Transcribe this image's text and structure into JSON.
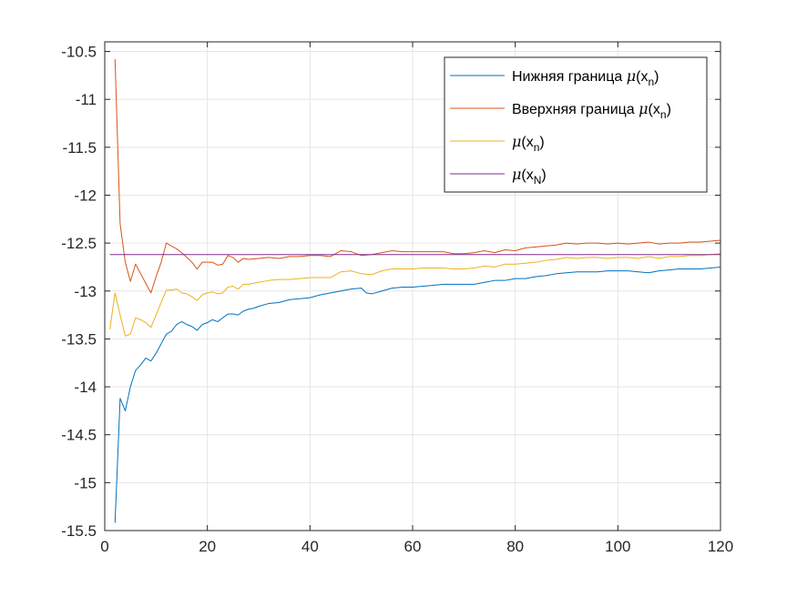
{
  "chart_data": {
    "type": "line",
    "title": "",
    "xlabel": "",
    "ylabel": "",
    "xlim": [
      0,
      120
    ],
    "ylim": [
      -15.5,
      -10.4
    ],
    "xticks": [
      0,
      20,
      40,
      60,
      80,
      100,
      120
    ],
    "xtick_labels": [
      "0",
      "20",
      "40",
      "60",
      "80",
      "100",
      "120"
    ],
    "yticks": [
      -15.5,
      -15,
      -14.5,
      -14,
      -13.5,
      -13,
      -12.5,
      -12,
      -11.5,
      -11,
      -10.5
    ],
    "ytick_labels": [
      "-15.5",
      "-15",
      "-14.5",
      "-14",
      "-13.5",
      "-13",
      "-12.5",
      "-12",
      "-11.5",
      "-11",
      "-10.5"
    ],
    "grid": true,
    "legend_position": "top-right",
    "series": [
      {
        "legend_prefix": "Нижняя граница ",
        "symbol": "μ",
        "arg_open": "(x",
        "subscript": "n",
        "arg_close": ")",
        "color": "#0072BD",
        "points": [
          [
            2,
            -15.42
          ],
          [
            3,
            -14.12
          ],
          [
            4,
            -14.25
          ],
          [
            5,
            -14.0
          ],
          [
            6,
            -13.83
          ],
          [
            7,
            -13.77
          ],
          [
            8,
            -13.7
          ],
          [
            9,
            -13.73
          ],
          [
            10,
            -13.65
          ],
          [
            11,
            -13.55
          ],
          [
            12,
            -13.45
          ],
          [
            13,
            -13.42
          ],
          [
            14,
            -13.35
          ],
          [
            15,
            -13.32
          ],
          [
            16,
            -13.35
          ],
          [
            17,
            -13.37
          ],
          [
            18,
            -13.41
          ],
          [
            19,
            -13.35
          ],
          [
            20,
            -13.33
          ],
          [
            21,
            -13.3
          ],
          [
            22,
            -13.32
          ],
          [
            23,
            -13.28
          ],
          [
            24,
            -13.24
          ],
          [
            25,
            -13.24
          ],
          [
            26,
            -13.25
          ],
          [
            27,
            -13.21
          ],
          [
            28,
            -13.19
          ],
          [
            29,
            -13.18
          ],
          [
            30,
            -13.16
          ],
          [
            32,
            -13.13
          ],
          [
            34,
            -13.12
          ],
          [
            36,
            -13.09
          ],
          [
            38,
            -13.08
          ],
          [
            40,
            -13.07
          ],
          [
            42,
            -13.04
          ],
          [
            44,
            -13.02
          ],
          [
            46,
            -13.0
          ],
          [
            48,
            -12.98
          ],
          [
            50,
            -12.97
          ],
          [
            51,
            -13.02
          ],
          [
            52,
            -13.03
          ],
          [
            54,
            -13.0
          ],
          [
            56,
            -12.97
          ],
          [
            58,
            -12.96
          ],
          [
            60,
            -12.96
          ],
          [
            62,
            -12.95
          ],
          [
            64,
            -12.94
          ],
          [
            66,
            -12.93
          ],
          [
            68,
            -12.93
          ],
          [
            70,
            -12.93
          ],
          [
            72,
            -12.93
          ],
          [
            74,
            -12.91
          ],
          [
            76,
            -12.89
          ],
          [
            78,
            -12.89
          ],
          [
            80,
            -12.87
          ],
          [
            82,
            -12.87
          ],
          [
            84,
            -12.85
          ],
          [
            86,
            -12.84
          ],
          [
            88,
            -12.82
          ],
          [
            90,
            -12.81
          ],
          [
            92,
            -12.8
          ],
          [
            94,
            -12.8
          ],
          [
            96,
            -12.8
          ],
          [
            98,
            -12.79
          ],
          [
            100,
            -12.79
          ],
          [
            102,
            -12.79
          ],
          [
            104,
            -12.8
          ],
          [
            106,
            -12.81
          ],
          [
            108,
            -12.79
          ],
          [
            110,
            -12.78
          ],
          [
            112,
            -12.77
          ],
          [
            114,
            -12.77
          ],
          [
            116,
            -12.77
          ],
          [
            118,
            -12.76
          ],
          [
            120,
            -12.75
          ]
        ]
      },
      {
        "legend_prefix": "Вверхняя граница ",
        "symbol": "μ",
        "arg_open": "(x",
        "subscript": "n",
        "arg_close": ")",
        "color": "#D95319",
        "points": [
          [
            2,
            -10.58
          ],
          [
            3,
            -12.3
          ],
          [
            4,
            -12.7
          ],
          [
            5,
            -12.9
          ],
          [
            6,
            -12.72
          ],
          [
            7,
            -12.82
          ],
          [
            8,
            -12.92
          ],
          [
            9,
            -13.02
          ],
          [
            10,
            -12.85
          ],
          [
            11,
            -12.7
          ],
          [
            12,
            -12.5
          ],
          [
            13,
            -12.53
          ],
          [
            14,
            -12.56
          ],
          [
            15,
            -12.6
          ],
          [
            16,
            -12.65
          ],
          [
            17,
            -12.7
          ],
          [
            18,
            -12.77
          ],
          [
            19,
            -12.7
          ],
          [
            20,
            -12.7
          ],
          [
            21,
            -12.7
          ],
          [
            22,
            -12.73
          ],
          [
            23,
            -12.72
          ],
          [
            24,
            -12.63
          ],
          [
            25,
            -12.65
          ],
          [
            26,
            -12.7
          ],
          [
            27,
            -12.66
          ],
          [
            28,
            -12.67
          ],
          [
            30,
            -12.66
          ],
          [
            32,
            -12.65
          ],
          [
            34,
            -12.66
          ],
          [
            36,
            -12.64
          ],
          [
            38,
            -12.64
          ],
          [
            40,
            -12.63
          ],
          [
            42,
            -12.63
          ],
          [
            44,
            -12.64
          ],
          [
            46,
            -12.58
          ],
          [
            48,
            -12.59
          ],
          [
            50,
            -12.63
          ],
          [
            52,
            -12.62
          ],
          [
            54,
            -12.6
          ],
          [
            56,
            -12.58
          ],
          [
            58,
            -12.59
          ],
          [
            60,
            -12.59
          ],
          [
            62,
            -12.59
          ],
          [
            64,
            -12.59
          ],
          [
            66,
            -12.59
          ],
          [
            68,
            -12.61
          ],
          [
            70,
            -12.61
          ],
          [
            72,
            -12.6
          ],
          [
            74,
            -12.58
          ],
          [
            76,
            -12.6
          ],
          [
            78,
            -12.57
          ],
          [
            80,
            -12.58
          ],
          [
            82,
            -12.55
          ],
          [
            84,
            -12.54
          ],
          [
            86,
            -12.53
          ],
          [
            88,
            -12.52
          ],
          [
            90,
            -12.5
          ],
          [
            92,
            -12.51
          ],
          [
            94,
            -12.5
          ],
          [
            96,
            -12.5
          ],
          [
            98,
            -12.51
          ],
          [
            100,
            -12.5
          ],
          [
            102,
            -12.51
          ],
          [
            104,
            -12.5
          ],
          [
            106,
            -12.49
          ],
          [
            108,
            -12.51
          ],
          [
            110,
            -12.5
          ],
          [
            112,
            -12.5
          ],
          [
            114,
            -12.49
          ],
          [
            116,
            -12.49
          ],
          [
            118,
            -12.48
          ],
          [
            120,
            -12.47
          ]
        ]
      },
      {
        "legend_prefix": "",
        "symbol": "μ",
        "arg_open": "(x",
        "subscript": "n",
        "arg_close": ")",
        "color": "#EDB120",
        "points": [
          [
            1,
            -13.4
          ],
          [
            2,
            -13.02
          ],
          [
            3,
            -13.25
          ],
          [
            4,
            -13.47
          ],
          [
            5,
            -13.45
          ],
          [
            6,
            -13.28
          ],
          [
            7,
            -13.3
          ],
          [
            8,
            -13.33
          ],
          [
            9,
            -13.38
          ],
          [
            10,
            -13.25
          ],
          [
            11,
            -13.12
          ],
          [
            12,
            -12.99
          ],
          [
            13,
            -12.99
          ],
          [
            14,
            -12.98
          ],
          [
            15,
            -13.02
          ],
          [
            16,
            -13.03
          ],
          [
            17,
            -13.06
          ],
          [
            18,
            -13.1
          ],
          [
            19,
            -13.04
          ],
          [
            20,
            -13.02
          ],
          [
            21,
            -13.01
          ],
          [
            22,
            -13.03
          ],
          [
            23,
            -13.02
          ],
          [
            24,
            -12.96
          ],
          [
            25,
            -12.95
          ],
          [
            26,
            -12.98
          ],
          [
            27,
            -12.93
          ],
          [
            28,
            -12.93
          ],
          [
            30,
            -12.91
          ],
          [
            32,
            -12.89
          ],
          [
            34,
            -12.88
          ],
          [
            36,
            -12.88
          ],
          [
            38,
            -12.87
          ],
          [
            40,
            -12.86
          ],
          [
            42,
            -12.86
          ],
          [
            44,
            -12.86
          ],
          [
            46,
            -12.8
          ],
          [
            48,
            -12.79
          ],
          [
            50,
            -12.82
          ],
          [
            52,
            -12.83
          ],
          [
            54,
            -12.79
          ],
          [
            56,
            -12.77
          ],
          [
            58,
            -12.77
          ],
          [
            60,
            -12.77
          ],
          [
            62,
            -12.76
          ],
          [
            64,
            -12.76
          ],
          [
            66,
            -12.76
          ],
          [
            68,
            -12.77
          ],
          [
            70,
            -12.77
          ],
          [
            72,
            -12.76
          ],
          [
            74,
            -12.74
          ],
          [
            76,
            -12.75
          ],
          [
            78,
            -12.72
          ],
          [
            80,
            -12.72
          ],
          [
            82,
            -12.71
          ],
          [
            84,
            -12.7
          ],
          [
            86,
            -12.68
          ],
          [
            88,
            -12.67
          ],
          [
            90,
            -12.65
          ],
          [
            92,
            -12.66
          ],
          [
            94,
            -12.65
          ],
          [
            96,
            -12.65
          ],
          [
            98,
            -12.66
          ],
          [
            100,
            -12.65
          ],
          [
            102,
            -12.65
          ],
          [
            104,
            -12.66
          ],
          [
            106,
            -12.64
          ],
          [
            108,
            -12.66
          ],
          [
            110,
            -12.64
          ],
          [
            112,
            -12.64
          ],
          [
            114,
            -12.63
          ],
          [
            116,
            -12.63
          ],
          [
            118,
            -12.62
          ],
          [
            120,
            -12.61
          ]
        ]
      },
      {
        "legend_prefix": "",
        "symbol": "μ",
        "arg_open": "(x",
        "subscript": "N",
        "arg_close": ")",
        "color": "#7E2F8E",
        "points": [
          [
            1,
            -12.62
          ],
          [
            120,
            -12.62
          ]
        ]
      }
    ]
  }
}
